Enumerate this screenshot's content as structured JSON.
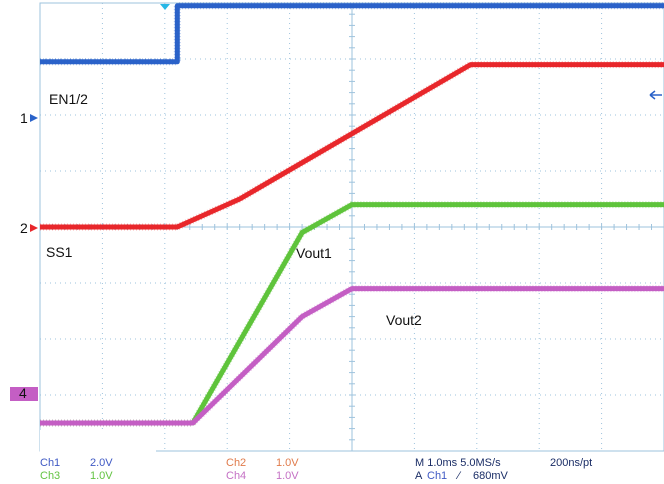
{
  "chart_data": {
    "type": "line",
    "title": "",
    "xlabel": "",
    "ylabel": "",
    "grid": true,
    "time_per_div_ms": 1.0,
    "x_range_ms": [
      0,
      10
    ],
    "y_range_div": [
      0,
      8
    ],
    "channel_markers": [
      {
        "name": "1",
        "color": "#2a62c9"
      },
      {
        "name": "2",
        "color": "#e8272b"
      },
      {
        "name": "4",
        "color": "#c45ec4"
      }
    ],
    "annotations": [
      {
        "text": "EN1/2"
      },
      {
        "text": "SS1"
      },
      {
        "text": "Vout1"
      },
      {
        "text": "Vout2"
      }
    ],
    "series": [
      {
        "channel": "Ch1",
        "color": "#2a62c9",
        "x": [
          0,
          2.2,
          2.2,
          10
        ],
        "y": [
          6.95,
          6.95,
          7.95,
          7.95
        ]
      },
      {
        "channel": "Ch2",
        "color": "#e8272b",
        "x": [
          0,
          2.2,
          3.2,
          6.9,
          10
        ],
        "y": [
          4.0,
          4.0,
          4.5,
          6.9,
          6.9
        ]
      },
      {
        "channel": "Ch3",
        "color": "#5fc43b",
        "x": [
          0,
          2.45,
          4.2,
          5.0,
          10
        ],
        "y": [
          0.5,
          0.5,
          3.9,
          4.4,
          4.4
        ]
      },
      {
        "channel": "Ch4",
        "color": "#c45ec4",
        "x": [
          0,
          2.45,
          4.2,
          5.0,
          10
        ],
        "y": [
          0.5,
          0.5,
          2.4,
          2.9,
          2.9
        ]
      }
    ]
  },
  "status_bar": {
    "ch1_name": "Ch1",
    "ch1_scale": "2.0V",
    "ch3_name": "Ch3",
    "ch3_scale": "1.0V",
    "ch2_name": "Ch2",
    "ch2_scale": "1.0V",
    "ch4_name": "Ch4",
    "ch4_scale": "1.0V",
    "timebase": "M 1.0ms 5.0MS/s",
    "resolution": "200ns/pt",
    "trigger_prefix": "A",
    "trigger_channel": "Ch1",
    "trigger_slope": "∕",
    "trigger_level": "680mV"
  },
  "colors": {
    "ch1": "#2a62c9",
    "ch2": "#e8272b",
    "ch3": "#5fc43b",
    "ch4": "#c45ec4",
    "ch1_text": "#3f59c4",
    "ch3_text": "#63c342",
    "ch2_text": "#e07b4b",
    "ch4_text": "#c470c4",
    "grid": "#9ec3dd",
    "dark_text": "#1a2d66",
    "trigger": "#27b7e6"
  }
}
